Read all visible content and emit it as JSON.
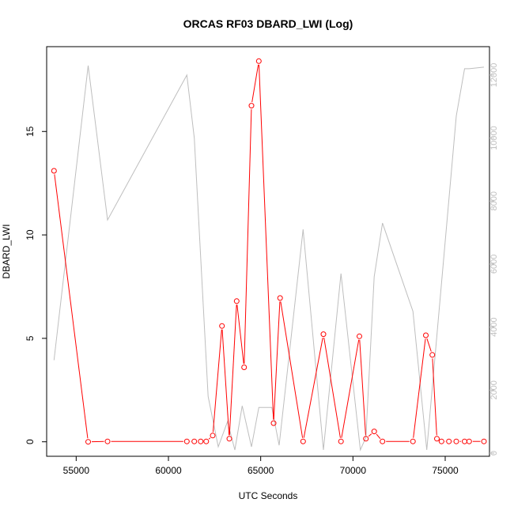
{
  "chart_data": {
    "type": "line",
    "title": "ORCAS RF03 DBARD_LWI (Log)",
    "xlabel": "UTC Seconds",
    "ylabel": "DBARD_LWI",
    "xlim": [
      53400,
      77400
    ],
    "ylim": [
      -0.7,
      19.1
    ],
    "y2lim": [
      -100,
      12900
    ],
    "x_ticks": [
      55000,
      60000,
      65000,
      70000,
      75000
    ],
    "y_ticks": [
      0,
      5,
      10,
      15
    ],
    "y2_ticks": [
      0,
      2000,
      4000,
      6000,
      8000,
      10000,
      12000
    ],
    "legend": "none",
    "grid": false,
    "series": [
      {
        "role": "primary",
        "color": "#ff0000",
        "marker": "open-circle",
        "x": [
          53800,
          55650,
          56700,
          61000,
          61400,
          61750,
          62050,
          62400,
          62900,
          63300,
          63700,
          64100,
          64500,
          64900,
          65700,
          66050,
          67300,
          68400,
          69350,
          70350,
          70700,
          71150,
          71600,
          73250,
          73950,
          74300,
          74550,
          74800,
          75200,
          75600,
          76050,
          76300,
          77100
        ],
        "y": [
          13.1,
          0.0,
          0.02,
          0.02,
          0.02,
          0.02,
          0.02,
          0.3,
          5.6,
          0.15,
          6.8,
          3.6,
          16.25,
          18.4,
          0.9,
          6.95,
          0.02,
          5.2,
          0.02,
          5.1,
          0.15,
          0.5,
          0.02,
          0.02,
          5.15,
          4.2,
          0.15,
          0.02,
          0.02,
          0.02,
          0.02,
          0.02,
          0.02
        ]
      },
      {
        "role": "secondary",
        "color": "#bebebe",
        "marker": "none",
        "x": [
          53800,
          55650,
          56700,
          61000,
          61400,
          62150,
          62700,
          63200,
          63600,
          64000,
          64500,
          64900,
          65600,
          66000,
          67300,
          68400,
          69350,
          70400,
          70700,
          71150,
          71600,
          73250,
          74000,
          75600,
          76050,
          76300,
          77100
        ],
        "y": [
          2950,
          12300,
          7400,
          12000,
          10000,
          1800,
          200,
          1000,
          100,
          1500,
          200,
          1450,
          1450,
          250,
          7100,
          100,
          5700,
          100,
          500,
          5600,
          7300,
          4500,
          100,
          10700,
          12200,
          12200,
          12250
        ]
      }
    ]
  }
}
